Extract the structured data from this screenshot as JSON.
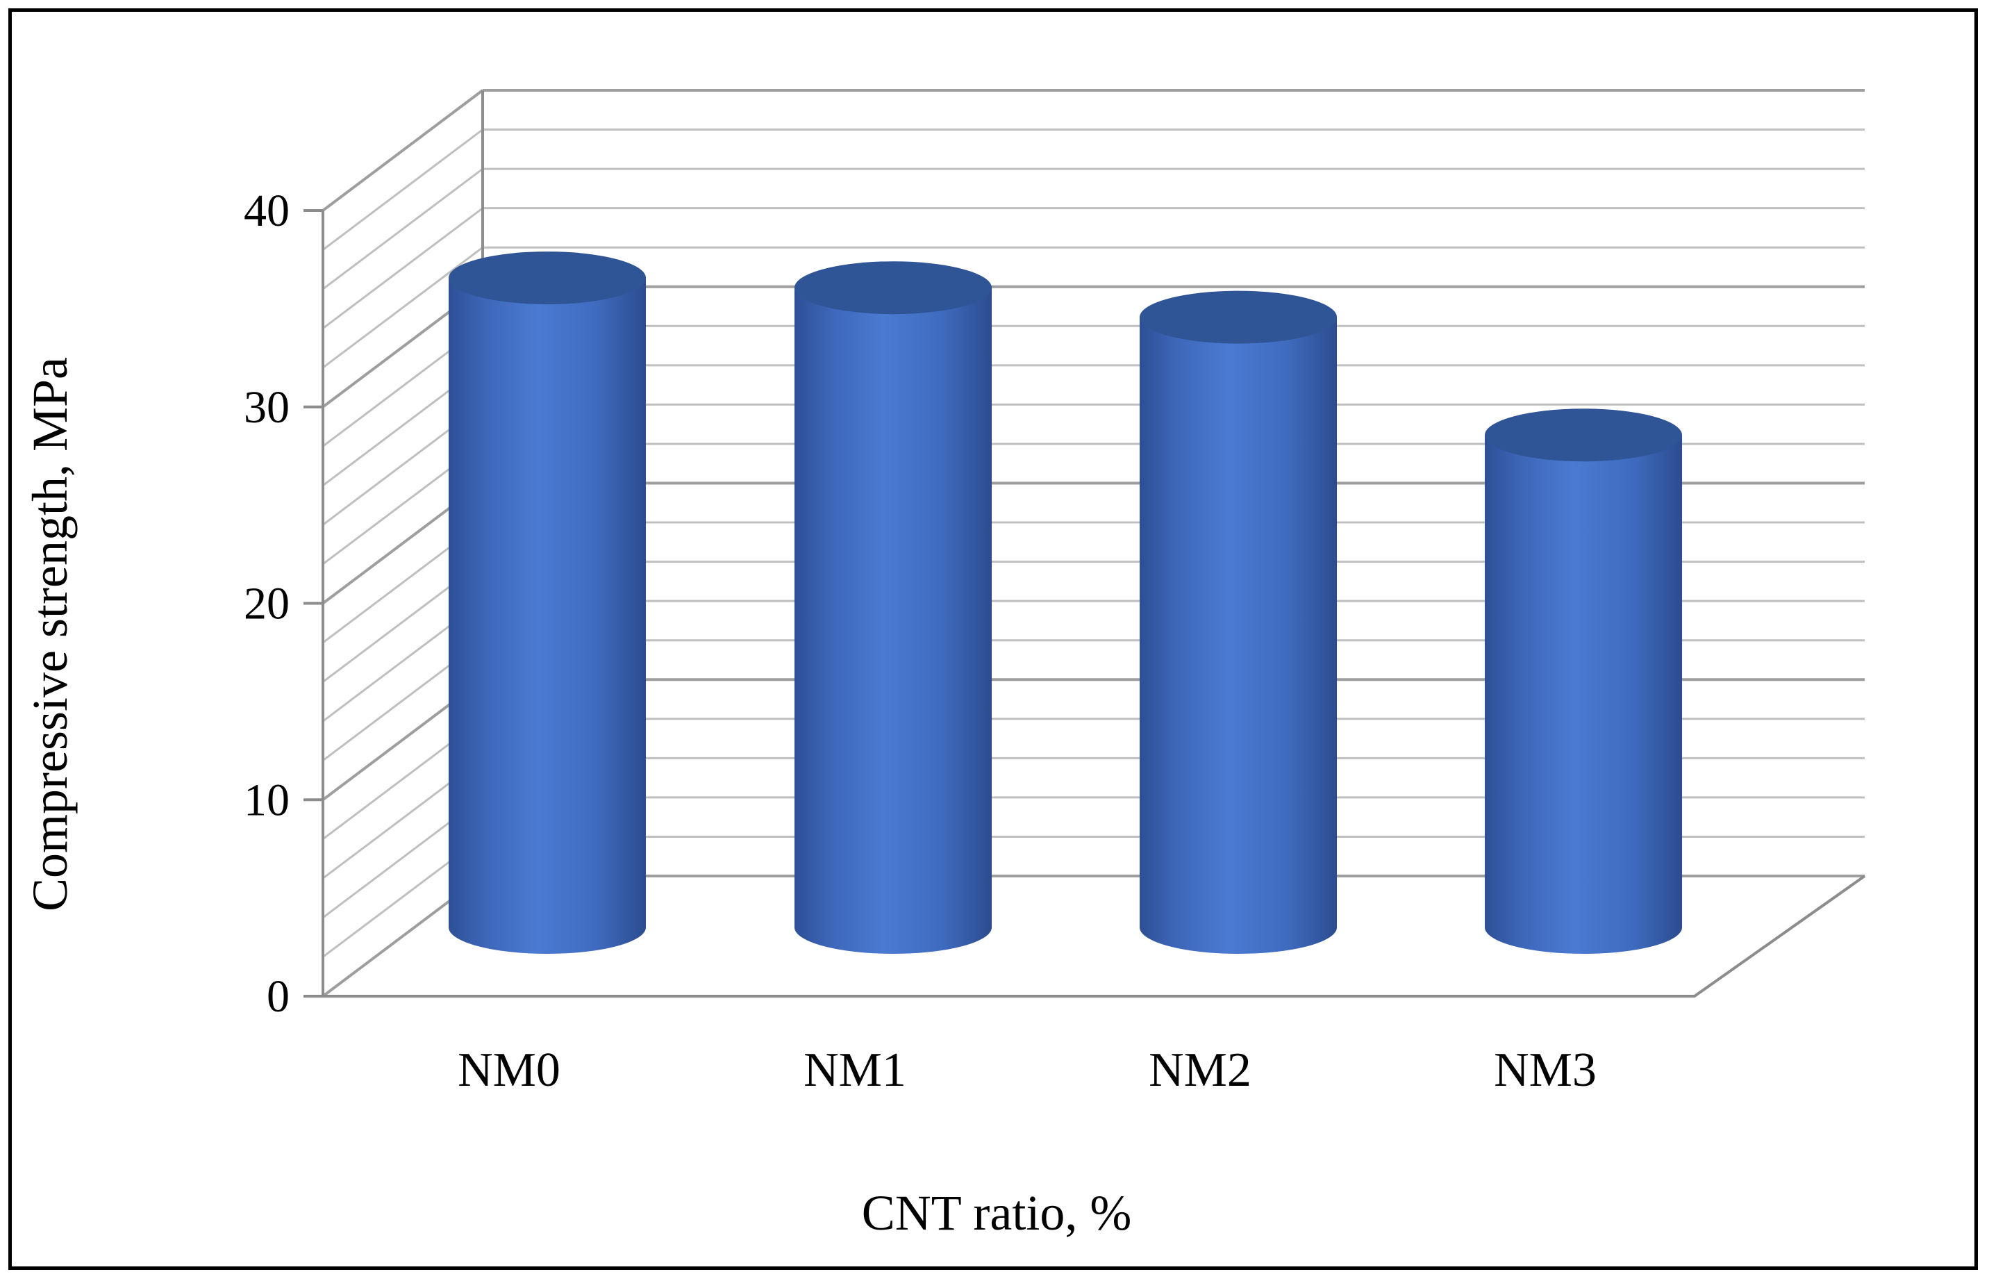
{
  "chart_data": {
    "type": "bar",
    "style": "3d-cylinder",
    "categories": [
      "NM0",
      "NM1",
      "NM2",
      "NM3"
    ],
    "series": [
      {
        "values": [
          32.5,
          32.0,
          30.5,
          24.5
        ]
      }
    ],
    "title": "",
    "xlabel": "CNT ratio, %",
    "ylabel": "Compressive strength, MPa",
    "ylim": [
      0,
      40
    ],
    "yticks": [
      "0",
      "10",
      "20",
      "30",
      "40"
    ],
    "grid": true,
    "legend": "none",
    "colors": {
      "bar": "#4472c4",
      "bar_dark": "#2e4f96",
      "bar_top": "#2f5597",
      "grid": "#bfbfbf",
      "axis": "#8c8c8c"
    }
  }
}
